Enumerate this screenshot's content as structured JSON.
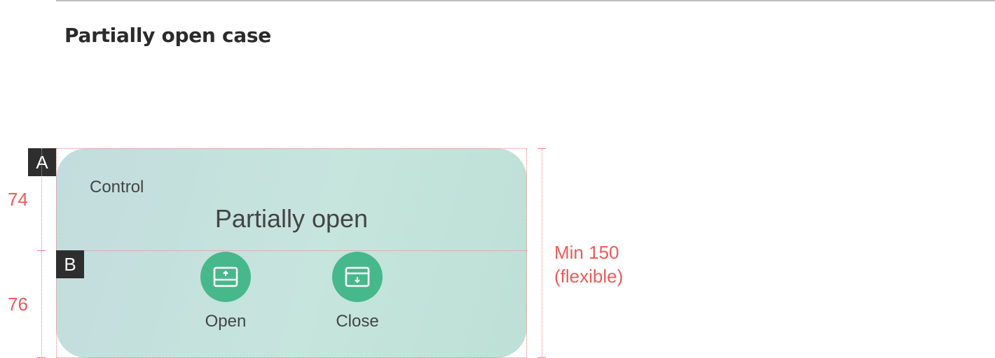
{
  "section": {
    "title": "Partially open case"
  },
  "card": {
    "control_label": "Control",
    "state_text": "Partially open",
    "actions": [
      {
        "label": "Open",
        "icon": "open-window-icon"
      },
      {
        "label": "Close",
        "icon": "close-window-icon"
      }
    ],
    "accent_color": "#47b88b"
  },
  "tags": {
    "a": "A",
    "b": "B"
  },
  "dimensions": {
    "top_height": "74",
    "bottom_height": "76",
    "total_line1": "Min 150",
    "total_line2": "(flexible)",
    "color": "#ee5a5a"
  }
}
